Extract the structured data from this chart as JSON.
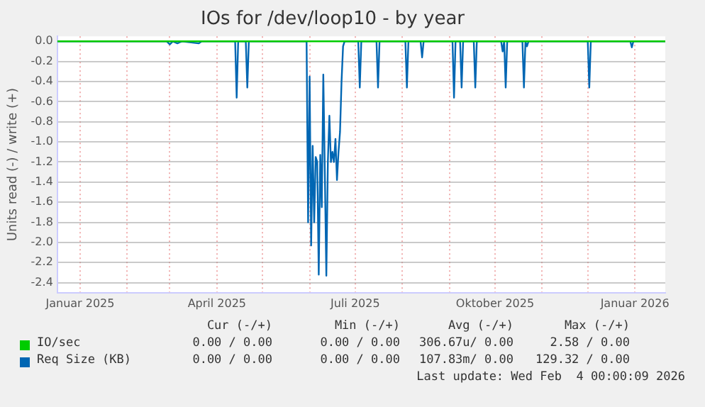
{
  "chart_data": {
    "type": "line",
    "title": "IOs for /dev/loop10 - by year",
    "ylabel": "Units read (-) / write (+)",
    "xlim": [
      "2024-12-17",
      "2026-01-21"
    ],
    "xticks": [
      {
        "value": "2025-01-01",
        "label": "Januar 2025"
      },
      {
        "value": "2025-02-01",
        "label": null
      },
      {
        "value": "2025-03-01",
        "label": null
      },
      {
        "value": "2025-04-01",
        "label": "April 2025"
      },
      {
        "value": "2025-05-01",
        "label": null
      },
      {
        "value": "2025-06-01",
        "label": null
      },
      {
        "value": "2025-07-01",
        "label": "Juli 2025"
      },
      {
        "value": "2025-08-01",
        "label": null
      },
      {
        "value": "2025-09-01",
        "label": null
      },
      {
        "value": "2025-10-01",
        "label": "Oktober 2025"
      },
      {
        "value": "2025-11-01",
        "label": null
      },
      {
        "value": "2025-12-01",
        "label": null
      },
      {
        "value": "2026-01-01",
        "label": "Januar 2026"
      }
    ],
    "ylim": [
      -2.5,
      0.05
    ],
    "yticks": [
      {
        "value": 0,
        "label": "0.0"
      },
      {
        "value": -0.2,
        "label": "-0.2"
      },
      {
        "value": -0.4,
        "label": "-0.4"
      },
      {
        "value": -0.6,
        "label": "-0.6"
      },
      {
        "value": -0.8,
        "label": "-0.8"
      },
      {
        "value": -1,
        "label": "-1.0"
      },
      {
        "value": -1.2,
        "label": "-1.2"
      },
      {
        "value": -1.4,
        "label": "-1.4"
      },
      {
        "value": -1.6,
        "label": "-1.6"
      },
      {
        "value": -1.8,
        "label": "-1.8"
      },
      {
        "value": -2,
        "label": "-2.0"
      },
      {
        "value": -2.2,
        "label": "-2.2"
      },
      {
        "value": -2.4,
        "label": "-2.4"
      }
    ],
    "grid": true,
    "legend": "bottom",
    "marker": "none",
    "line_style": "solid",
    "series": [
      {
        "name": "IO/sec",
        "color": "#00cc00",
        "x": [
          "2024-12-17",
          "2026-01-21"
        ],
        "values": [
          0,
          0
        ]
      },
      {
        "name": "Req Size (KB)",
        "color": "#0066b3",
        "x": [
          "2024-12-17",
          "2025-02-27",
          "2025-03-01",
          "2025-03-03",
          "2025-03-06",
          "2025-03-09",
          "2025-03-20",
          "2025-03-22",
          "2025-04-13",
          "2025-04-14",
          "2025-04-15",
          "2025-04-20",
          "2025-04-21",
          "2025-04-22",
          "2025-05-30",
          "2025-05-31",
          "2025-06-01",
          "2025-06-02",
          "2025-06-03",
          "2025-06-04",
          "2025-06-05",
          "2025-06-06",
          "2025-06-07",
          "2025-06-08",
          "2025-06-09",
          "2025-06-10",
          "2025-06-11",
          "2025-06-12",
          "2025-06-13",
          "2025-06-14",
          "2025-06-15",
          "2025-06-16",
          "2025-06-17",
          "2025-06-18",
          "2025-06-19",
          "2025-06-20",
          "2025-06-21",
          "2025-06-22",
          "2025-06-23",
          "2025-06-24",
          "2025-07-03",
          "2025-07-04",
          "2025-07-05",
          "2025-07-15",
          "2025-07-16",
          "2025-07-17",
          "2025-08-03",
          "2025-08-04",
          "2025-08-05",
          "2025-08-13",
          "2025-08-14",
          "2025-08-15",
          "2025-09-03",
          "2025-09-04",
          "2025-09-05",
          "2025-09-08",
          "2025-09-09",
          "2025-09-10",
          "2025-09-17",
          "2025-09-18",
          "2025-09-19",
          "2025-10-05",
          "2025-10-06",
          "2025-10-07",
          "2025-10-08",
          "2025-10-09",
          "2025-10-19",
          "2025-10-20",
          "2025-10-21",
          "2025-10-22",
          "2025-10-23",
          "2025-12-01",
          "2025-12-02",
          "2025-12-03",
          "2025-12-29",
          "2025-12-30",
          "2025-12-31",
          "2026-01-21"
        ],
        "values": [
          0,
          0,
          -0.03,
          0,
          -0.02,
          0,
          -0.02,
          0,
          0,
          -0.56,
          0,
          0,
          -0.46,
          0,
          0,
          -1.8,
          -0.35,
          -2.03,
          -1.04,
          -1.8,
          -1.15,
          -1.2,
          -2.32,
          -1.13,
          -1.65,
          -0.33,
          -1.3,
          -2.33,
          -1.2,
          -0.74,
          -1.2,
          -1.1,
          -1.2,
          -0.97,
          -1.38,
          -1.1,
          -0.9,
          -0.4,
          -0.05,
          0,
          0,
          -0.46,
          0,
          0,
          -0.46,
          0,
          0,
          -0.46,
          0,
          0,
          -0.16,
          0,
          0,
          -0.56,
          0,
          0,
          -0.46,
          0,
          0,
          -0.46,
          0,
          0,
          -0.1,
          0,
          -0.46,
          0,
          0,
          -0.46,
          0,
          -0.05,
          0,
          0,
          -0.46,
          0,
          0,
          -0.06,
          0,
          0
        ]
      }
    ],
    "annotations": [
      "Cur (-/+)",
      "Min (-/+)",
      "Avg (-/+)",
      "Max (-/+)",
      "0.00 / 0.00",
      "0.00 / 0.00",
      "306.67u/ 0.00",
      "2.58 / 0.00",
      "0.00 / 0.00",
      "0.00 / 0.00",
      "107.83m/ 0.00",
      "129.32 / 0.00",
      "Last update: Wed Feb  4 00:00:09 2026"
    ]
  }
}
